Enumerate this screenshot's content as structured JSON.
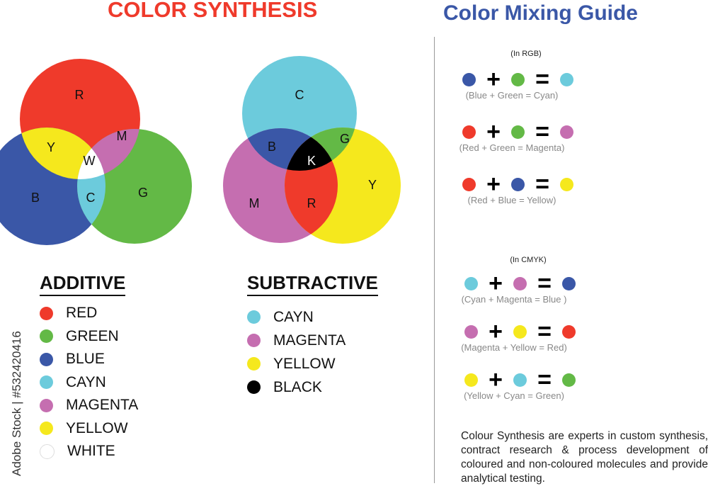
{
  "titles": {
    "left": "COLOR SYNTHESIS",
    "right": "Color Mixing Guide"
  },
  "colors": {
    "red": "#ef3a2b",
    "green": "#63b946",
    "blue": "#3a57a7",
    "cyan": "#6ccbdc",
    "magenta": "#c56eb0",
    "yellow": "#f5e81d",
    "black": "#000000",
    "white": "#ffffff"
  },
  "additive": {
    "heading": "ADDITIVE",
    "circle_labels": {
      "r": "R",
      "g": "G",
      "b": "B",
      "y": "Y",
      "m": "M",
      "c": "C",
      "w": "W"
    },
    "legend": [
      {
        "label": "RED",
        "color": "#ef3a2b"
      },
      {
        "label": "GREEN",
        "color": "#63b946"
      },
      {
        "label": "BLUE",
        "color": "#3a57a7"
      },
      {
        "label": "CAYN",
        "color": "#6ccbdc"
      },
      {
        "label": "MAGENTA",
        "color": "#c56eb0"
      },
      {
        "label": "YELLOW",
        "color": "#f5e81d"
      },
      {
        "label": "WHITE",
        "color": "#ffffff"
      }
    ]
  },
  "subtractive": {
    "heading": "SUBTRACTIVE",
    "circle_labels": {
      "c": "C",
      "m": "M",
      "y": "Y",
      "b": "B",
      "g": "G",
      "r": "R",
      "k": "K"
    },
    "legend": [
      {
        "label": "CAYN",
        "color": "#6ccbdc"
      },
      {
        "label": "MAGENTA",
        "color": "#c56eb0"
      },
      {
        "label": "YELLOW",
        "color": "#f5e81d"
      },
      {
        "label": "BLACK",
        "color": "#000000"
      }
    ]
  },
  "guide": {
    "rgb": {
      "label": "(In RGB)",
      "rows": [
        {
          "a": "#3a57a7",
          "b": "#63b946",
          "r": "#6ccbdc",
          "caption": "(Blue + Green = Cyan)"
        },
        {
          "a": "#ef3a2b",
          "b": "#63b946",
          "r": "#c56eb0",
          "caption": "(Red + Green = Magenta)"
        },
        {
          "a": "#ef3a2b",
          "b": "#3a57a7",
          "r": "#f5e81d",
          "caption": "(Red + Blue = Yellow)"
        }
      ]
    },
    "cmyk": {
      "label": "(In CMYK)",
      "rows": [
        {
          "a": "#6ccbdc",
          "b": "#c56eb0",
          "r": "#3a57a7",
          "caption": "(Cyan + Magenta =  Blue )"
        },
        {
          "a": "#c56eb0",
          "b": "#f5e81d",
          "r": "#ef3a2b",
          "caption": "(Magenta + Yellow = Red)"
        },
        {
          "a": "#f5e81d",
          "b": "#6ccbdc",
          "r": "#63b946",
          "caption": "(Yellow + Cyan =  Green)"
        }
      ]
    },
    "plus": "+",
    "equals": "="
  },
  "description": "Colour Synthesis are experts in custom synthesis, contract research & process development of coloured and non-coloured molecules and provide analytical testing.",
  "watermark": "Adobe Stock | #532420416"
}
